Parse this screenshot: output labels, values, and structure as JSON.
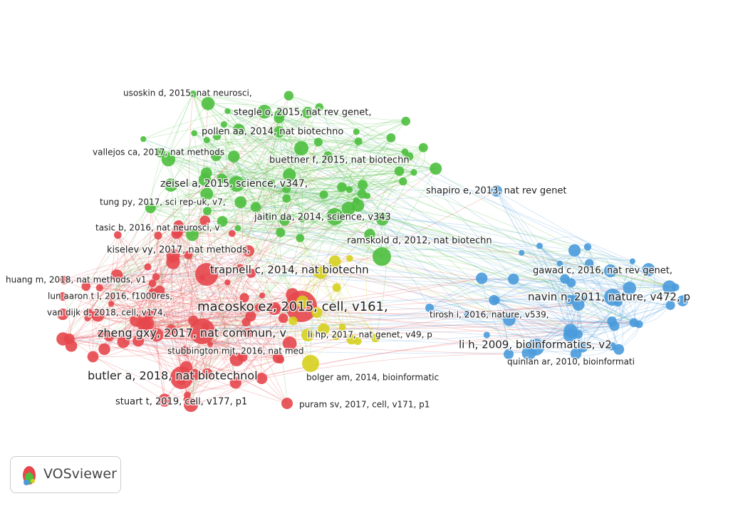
{
  "clusters": [
    {
      "name": "red",
      "color": "#e5474d"
    },
    {
      "name": "green",
      "color": "#4cbf3e"
    },
    {
      "name": "blue",
      "color": "#4a9bdc"
    },
    {
      "name": "yellow",
      "color": "#d6d01f"
    }
  ],
  "nodes": [
    {
      "label": "usoskin d, 2015, nat neurosci,",
      "cluster": 1
    },
    {
      "label": "stegle o, 2015, nat rev genet,",
      "cluster": 1
    },
    {
      "label": "pollen aa, 2014, nat biotechno",
      "cluster": 1
    },
    {
      "label": "vallejos ca, 2017, nat methods",
      "cluster": 1
    },
    {
      "label": "buettner f, 2015, nat biotechn",
      "cluster": 1
    },
    {
      "label": "zeisel a, 2015, science, v347,",
      "cluster": 1
    },
    {
      "label": "tung py, 2017, sci rep-uk, v7,",
      "cluster": 1
    },
    {
      "label": "jaitin da, 2014, science, v343",
      "cluster": 1
    },
    {
      "label": "ramskold d, 2012, nat biotechn",
      "cluster": 1
    },
    {
      "label": "tasic b, 2016, nat neurosci, v",
      "cluster": 0
    },
    {
      "label": "kiselev vy, 2017, nat methods,",
      "cluster": 0
    },
    {
      "label": "huang m, 2018, nat methods, v1",
      "cluster": 0
    },
    {
      "label": "lun aaron t l, 2016, f1000res,",
      "cluster": 0
    },
    {
      "label": "van dijk d, 2018, cell, v174,",
      "cluster": 0
    },
    {
      "label": "trapnell c, 2014, nat biotechn",
      "cluster": 0
    },
    {
      "label": "macosko ez, 2015, cell, v161,",
      "cluster": 0
    },
    {
      "label": "zheng gxy, 2017, nat commun, v",
      "cluster": 0
    },
    {
      "label": "stubbington mjt, 2016, nat med",
      "cluster": 0
    },
    {
      "label": "butler a, 2018, nat biotechnol",
      "cluster": 0
    },
    {
      "label": "stuart t, 2019, cell, v177, p1",
      "cluster": 0
    },
    {
      "label": "puram sv, 2017, cell, v171, p1",
      "cluster": 0
    },
    {
      "label": "li hp, 2017, nat genet, v49, p",
      "cluster": 3
    },
    {
      "label": "bolger am, 2014, bioinformatic",
      "cluster": 3
    },
    {
      "label": "shapiro e, 2013, nat rev genet",
      "cluster": 2
    },
    {
      "label": "gawad c, 2016, nat rev genet,",
      "cluster": 2
    },
    {
      "label": "navin n, 2011, nature, v472, p",
      "cluster": 2
    },
    {
      "label": "tirosh i, 2016, nature, v539,",
      "cluster": 2
    },
    {
      "label": "li h, 2009, bioinformatics, v2",
      "cluster": 2
    },
    {
      "label": "quinlan ar, 2010, bioinformati",
      "cluster": 2
    }
  ],
  "logo": "VOSviewer"
}
